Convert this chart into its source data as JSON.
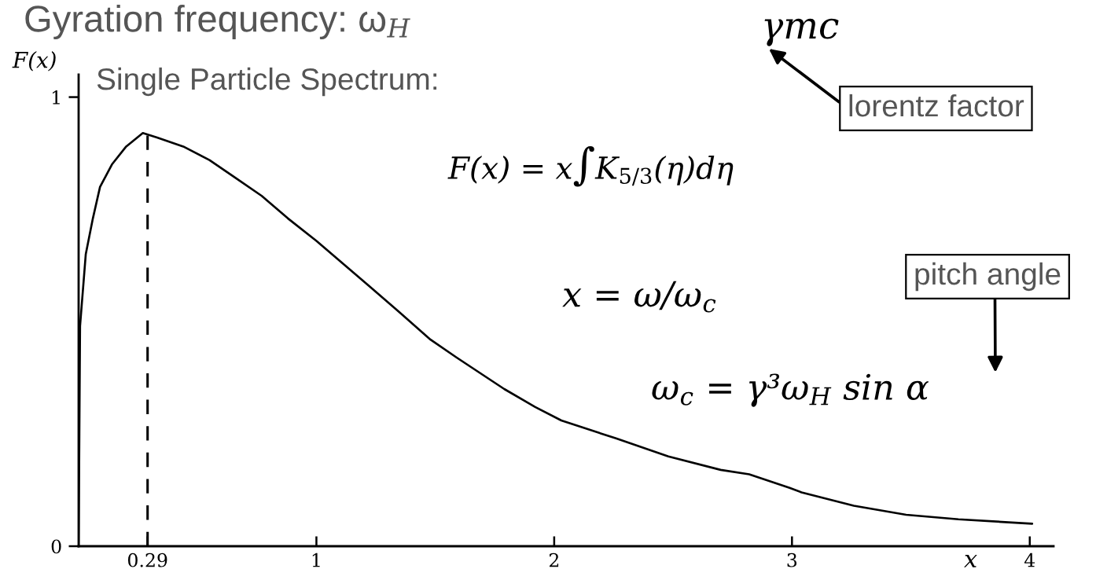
{
  "chart_data": {
    "type": "line",
    "title": "Gyration frequency: ω$_{H}$",
    "xlabel": "x",
    "ylabel": "F(x)",
    "x": [
      0,
      0.003,
      0.006,
      0.03,
      0.06,
      0.09,
      0.14,
      0.2,
      0.27,
      0.33,
      0.44,
      0.55,
      0.66,
      0.77,
      0.88,
      1.0,
      1.11,
      1.22,
      1.33,
      1.48,
      1.59,
      1.79,
      1.92,
      2.03,
      2.26,
      2.48,
      2.7,
      2.82,
      2.99,
      3.04,
      3.26,
      3.48,
      3.7,
      4.01
    ],
    "series": [
      {
        "color": "#000000",
        "values": [
          0,
          0.25,
          0.49,
          0.65,
          0.73,
          0.8,
          0.85,
          0.89,
          0.92,
          0.91,
          0.89,
          0.86,
          0.82,
          0.78,
          0.73,
          0.68,
          0.63,
          0.58,
          0.53,
          0.46,
          0.42,
          0.35,
          0.31,
          0.28,
          0.24,
          0.2,
          0.17,
          0.16,
          0.13,
          0.12,
          0.09,
          0.07,
          0.06,
          0.05
        ]
      }
    ],
    "xlim": [
      0,
      4.1
    ],
    "ylim": [
      0,
      1.05
    ],
    "xticks": [
      0.29,
      1,
      2,
      3,
      4
    ],
    "yticks": [
      0,
      1
    ],
    "ref_lines": [
      {
        "axis": "x",
        "value": 0.29,
        "color": "#000000",
        "line_style": "dashed"
      }
    ],
    "annotations": [
      "γmc",
      "Single Particle Spectrum:",
      "lorentz factor",
      "F(x) = x∫K$_{5/3}$(η)dη",
      "x = ω/ω$_{c}$",
      "pitch angle",
      "ω$_{c}$ = γ³ω$_{H}$ sin α"
    ]
  }
}
